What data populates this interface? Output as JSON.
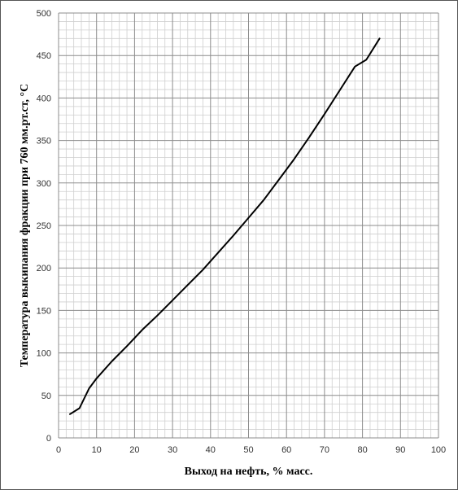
{
  "chart_data": {
    "type": "line",
    "title": "",
    "xlabel": "Выход на нефть, % масс.",
    "ylabel": "Температура выкипания фракции при 760 мм.рт.ст, °С",
    "xlim": [
      0,
      100
    ],
    "ylim": [
      0,
      500
    ],
    "x_ticks": [
      "0",
      "10",
      "20",
      "30",
      "40",
      "50",
      "60",
      "70",
      "80",
      "90",
      "100"
    ],
    "y_ticks": [
      "0",
      "50",
      "100",
      "150",
      "200",
      "250",
      "300",
      "350",
      "400",
      "450",
      "500"
    ],
    "grid": true,
    "legend": "none",
    "line_color": "#000000",
    "series": [
      {
        "values": [
          [
            3,
            28
          ],
          [
            5.5,
            35
          ],
          [
            8,
            58
          ],
          [
            10,
            70
          ],
          [
            14,
            90
          ],
          [
            18,
            108
          ],
          [
            22,
            127
          ],
          [
            26,
            144
          ],
          [
            30,
            162
          ],
          [
            34,
            180
          ],
          [
            38,
            198
          ],
          [
            42,
            218
          ],
          [
            46,
            238
          ],
          [
            50,
            259
          ],
          [
            54,
            280
          ],
          [
            58,
            304
          ],
          [
            62,
            328
          ],
          [
            66,
            354
          ],
          [
            70,
            381
          ],
          [
            74,
            409
          ],
          [
            78,
            437
          ],
          [
            81,
            445
          ],
          [
            84.5,
            470
          ]
        ]
      }
    ]
  }
}
